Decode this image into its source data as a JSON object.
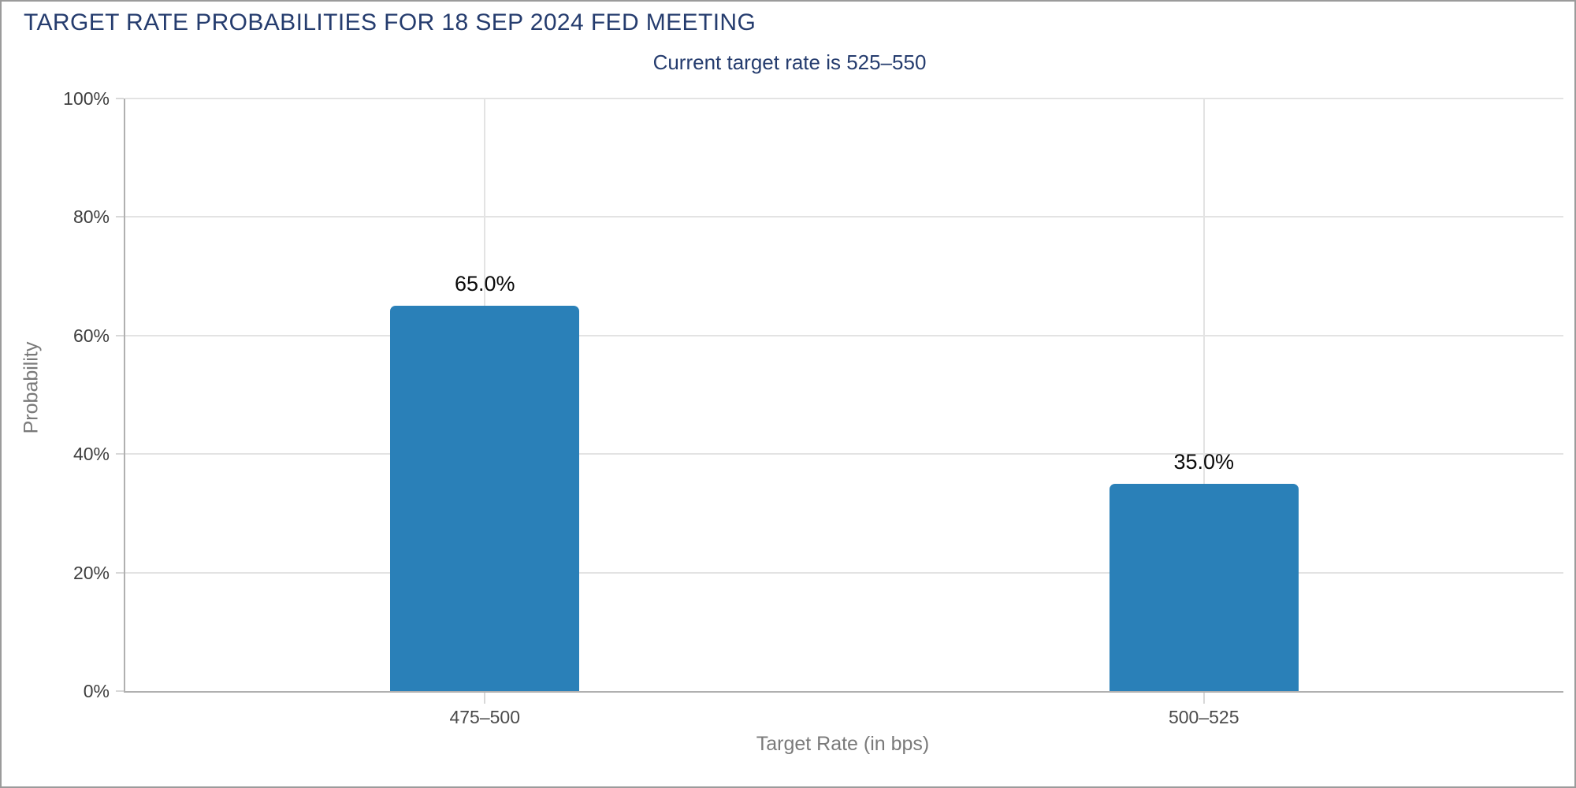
{
  "page": {
    "title": "TARGET RATE PROBABILITIES FOR 18 SEP 2024 FED MEETING",
    "subtitle": "Current target rate is 525–550"
  },
  "chart_data": {
    "type": "bar",
    "title": "TARGET RATE PROBABILITIES FOR 18 SEP 2024 FED MEETING",
    "subtitle": "Current target rate is 525–550",
    "categories": [
      "475–500",
      "500–525"
    ],
    "values": [
      65.0,
      35.0
    ],
    "value_labels": [
      "65.0%",
      "35.0%"
    ],
    "xlabel": "Target Rate (in bps)",
    "ylabel": "Probability",
    "ylim": [
      0,
      100
    ],
    "yticks": [
      0,
      20,
      40,
      60,
      80,
      100
    ],
    "ytick_labels": [
      "0%",
      "20%",
      "40%",
      "60%",
      "80%",
      "100%"
    ],
    "grid": true,
    "legend_position": "none",
    "colors": {
      "bar": "#2a80b8",
      "title_text": "#253c6e",
      "subtitle_text": "#253c6e",
      "gridline": "#e3e3e3",
      "axis_line": "#b0b0b0",
      "frame_border": "#9b9b9b"
    }
  }
}
